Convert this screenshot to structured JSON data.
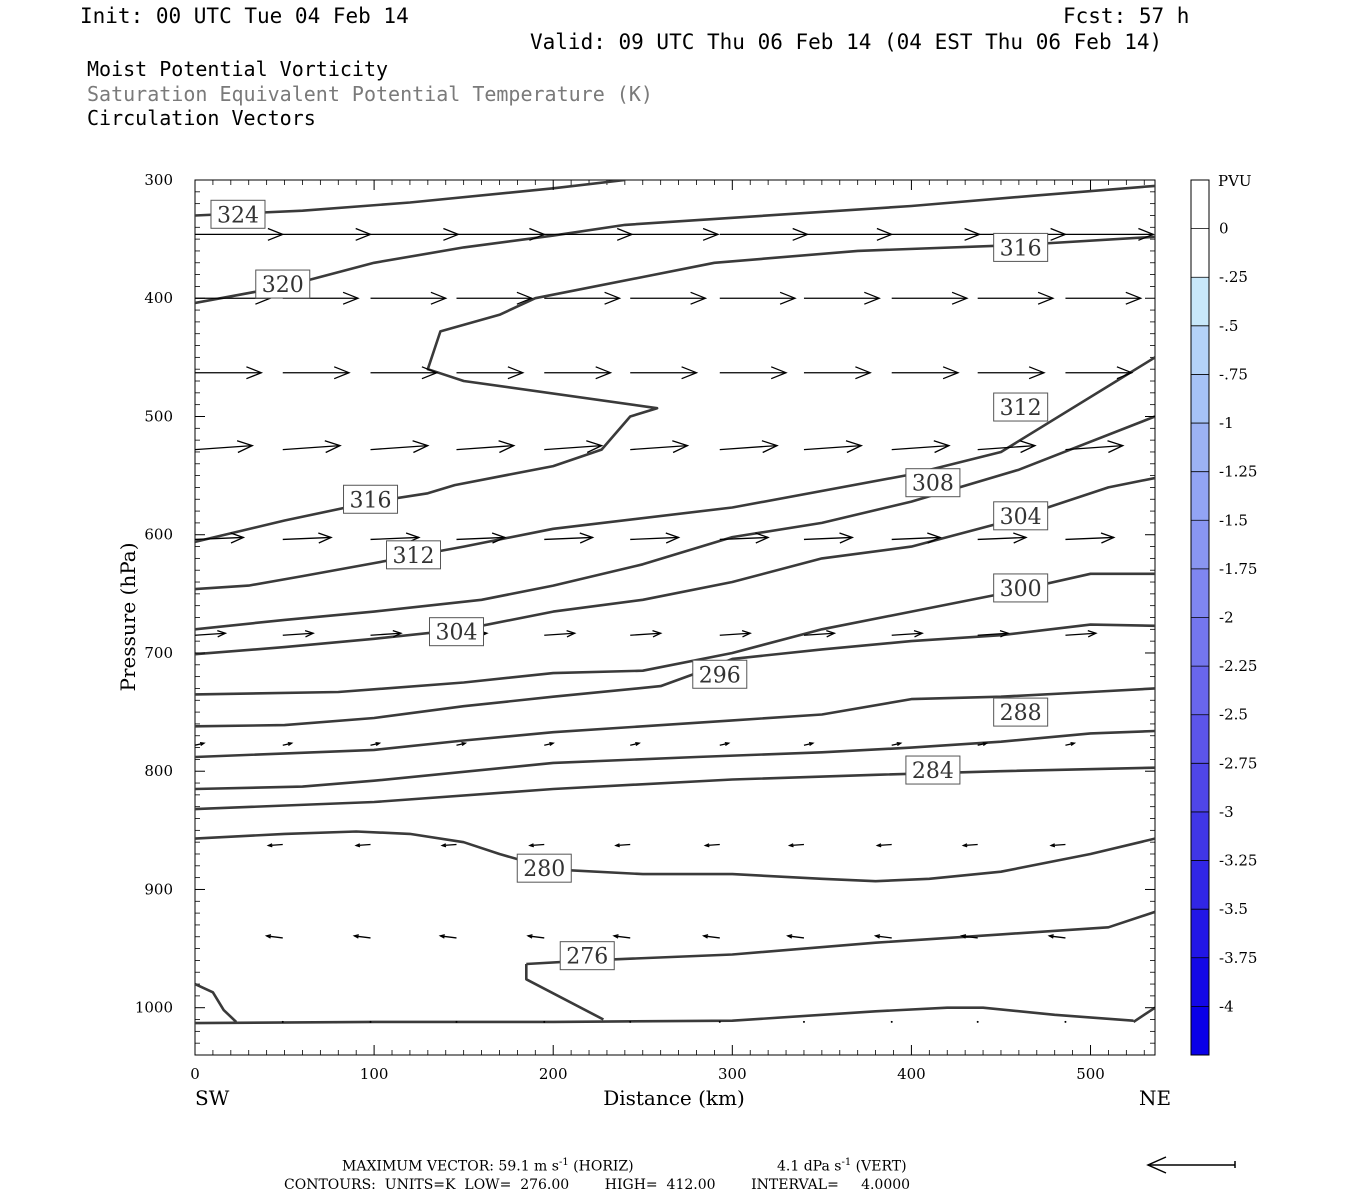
{
  "header": {
    "init": "Init: 00 UTC Tue 04 Feb 14",
    "fcst": "Fcst:   57 h",
    "valid": "Valid: 09 UTC Thu 06 Feb 14 (04 EST Thu 06 Feb 14)",
    "line1": "Moist Potential Vorticity",
    "line2": "Saturation Equivalent Potential Temperature (K)",
    "line3": "Circulation Vectors"
  },
  "footer": {
    "max_vector_prefix": "MAXIMUM VECTOR:  59.1 m s",
    "horiz_suffix": " (HORIZ)",
    "vert_prefix": "4.1 dPa s",
    "vert_suffix": " (VERT)",
    "exponent": "-1",
    "contours": "CONTOURS:  UNITS=K  LOW=  276.00        HIGH=  412.00        INTERVAL=     4.0000"
  },
  "colors": {
    "contour": "#3a3a3a",
    "vector": "#000000",
    "label_box_border": "#555555",
    "colorbar_edges": [
      "#ffffff",
      "#ffffff",
      "#c8e8fa",
      "#b4d2f8",
      "#a6c2f6",
      "#9cb2f4",
      "#92a4f4",
      "#8996f2",
      "#7f86f0",
      "#7476ee",
      "#6966ec",
      "#5c55ea",
      "#4f46e8",
      "#4036e6",
      "#3126e6",
      "#2216e6",
      "#1408e6",
      "#0a00e8"
    ]
  },
  "chart_data": {
    "type": "cross-section contour",
    "xlabel": "Distance (km)",
    "ylabel": "Pressure (hPa)",
    "x_range": [
      0,
      536
    ],
    "y_range": [
      1040,
      300
    ],
    "y_scale": "linear (pressure, inverted)",
    "x_ticks": [
      0,
      100,
      200,
      300,
      400,
      500
    ],
    "y_ticks": [
      300,
      400,
      500,
      600,
      700,
      800,
      900,
      1000
    ],
    "x_end_labels": {
      "left": "SW",
      "right": "NE"
    },
    "colorbar": {
      "title": "PVU",
      "levels": [
        "0",
        "-.25",
        "-.5",
        "-.75",
        "-1",
        "-1.25",
        "-1.5",
        "-1.75",
        "-2",
        "-2.25",
        "-2.5",
        "-2.75",
        "-3",
        "-3.25",
        "-3.5",
        "-3.75",
        "-4"
      ]
    },
    "contours": [
      {
        "label": "324",
        "points": [
          [
            0,
            330
          ],
          [
            60,
            326
          ],
          [
            120,
            319
          ],
          [
            200,
            307
          ],
          [
            240,
            300
          ]
        ]
      },
      {
        "label": "320",
        "points": [
          [
            0,
            404
          ],
          [
            50,
            390
          ],
          [
            100,
            370
          ],
          [
            150,
            357
          ],
          [
            200,
            347
          ],
          [
            240,
            338
          ],
          [
            300,
            332
          ],
          [
            400,
            322
          ],
          [
            470,
            313
          ],
          [
            536,
            305
          ]
        ]
      },
      {
        "label": "316",
        "points": [
          [
            0,
            606
          ],
          [
            50,
            588
          ],
          [
            100,
            572
          ],
          [
            130,
            565
          ],
          [
            145,
            558
          ],
          [
            200,
            542
          ],
          [
            227,
            528
          ],
          [
            243,
            500
          ],
          [
            258,
            493
          ],
          [
            150,
            470
          ],
          [
            130,
            460
          ],
          [
            137,
            428
          ],
          [
            170,
            414
          ],
          [
            190,
            400
          ],
          [
            250,
            382
          ],
          [
            290,
            370
          ],
          [
            370,
            360
          ],
          [
            460,
            355
          ],
          [
            536,
            348
          ]
        ]
      },
      {
        "label": "312",
        "points": [
          [
            0,
            646
          ],
          [
            30,
            643
          ],
          [
            60,
            635
          ],
          [
            100,
            624
          ],
          [
            150,
            610
          ],
          [
            200,
            595
          ],
          [
            300,
            577
          ],
          [
            400,
            549
          ],
          [
            450,
            530
          ],
          [
            536,
            450
          ]
        ]
      },
      {
        "label": "308",
        "points": [
          [
            0,
            680
          ],
          [
            50,
            672
          ],
          [
            100,
            665
          ],
          [
            160,
            655
          ],
          [
            200,
            643
          ],
          [
            250,
            625
          ],
          [
            300,
            602
          ],
          [
            350,
            590
          ],
          [
            400,
            572
          ],
          [
            460,
            545
          ],
          [
            536,
            500
          ]
        ]
      },
      {
        "label": "304",
        "points": [
          [
            0,
            701
          ],
          [
            50,
            695
          ],
          [
            100,
            688
          ],
          [
            150,
            680
          ],
          [
            200,
            665
          ],
          [
            250,
            655
          ],
          [
            300,
            640
          ],
          [
            350,
            620
          ],
          [
            400,
            610
          ],
          [
            450,
            590
          ],
          [
            510,
            560
          ],
          [
            536,
            552
          ]
        ]
      },
      {
        "label": "300",
        "points": [
          [
            0,
            735
          ],
          [
            80,
            733
          ],
          [
            150,
            725
          ],
          [
            200,
            717
          ],
          [
            250,
            715
          ],
          [
            300,
            700
          ],
          [
            350,
            680
          ],
          [
            400,
            665
          ],
          [
            450,
            650
          ],
          [
            500,
            633
          ],
          [
            536,
            633
          ]
        ]
      },
      {
        "label": "296",
        "points": [
          [
            0,
            762
          ],
          [
            50,
            761
          ],
          [
            100,
            755
          ],
          [
            150,
            745
          ],
          [
            200,
            737
          ],
          [
            260,
            728
          ],
          [
            280,
            717
          ],
          [
            300,
            705
          ],
          [
            350,
            697
          ],
          [
            400,
            690
          ],
          [
            450,
            685
          ],
          [
            500,
            676
          ],
          [
            536,
            677
          ]
        ]
      },
      {
        "label": "288",
        "points": [
          [
            0,
            788
          ],
          [
            100,
            782
          ],
          [
            150,
            774
          ],
          [
            200,
            767
          ],
          [
            250,
            762
          ],
          [
            300,
            757
          ],
          [
            350,
            752
          ],
          [
            400,
            739
          ],
          [
            450,
            737
          ],
          [
            500,
            733
          ],
          [
            536,
            730
          ]
        ]
      },
      {
        "label": "284",
        "points": [
          [
            0,
            815
          ],
          [
            60,
            813
          ],
          [
            100,
            808
          ],
          [
            200,
            793
          ],
          [
            280,
            788
          ],
          [
            350,
            784
          ],
          [
            400,
            780
          ],
          [
            450,
            775
          ],
          [
            500,
            768
          ],
          [
            536,
            766
          ]
        ]
      },
      {
        "label": "ctr-830",
        "points": [
          [
            0,
            832
          ],
          [
            100,
            826
          ],
          [
            200,
            815
          ],
          [
            300,
            807
          ],
          [
            380,
            803
          ],
          [
            450,
            800
          ],
          [
            536,
            797
          ]
        ]
      },
      {
        "label": "280",
        "points": [
          [
            0,
            857
          ],
          [
            50,
            853
          ],
          [
            90,
            851
          ],
          [
            120,
            853
          ],
          [
            150,
            860
          ],
          [
            170,
            870
          ],
          [
            200,
            883
          ],
          [
            250,
            887
          ],
          [
            300,
            887
          ],
          [
            350,
            891
          ],
          [
            380,
            893
          ],
          [
            410,
            891
          ],
          [
            450,
            885
          ],
          [
            500,
            870
          ],
          [
            536,
            857
          ]
        ]
      },
      {
        "label": "276",
        "points": [
          [
            185,
            963
          ],
          [
            220,
            960
          ],
          [
            300,
            955
          ],
          [
            380,
            945
          ],
          [
            450,
            938
          ],
          [
            510,
            932
          ],
          [
            536,
            919
          ]
        ]
      },
      {
        "label": "ctr-276b",
        "points": [
          [
            185,
            963
          ],
          [
            185,
            976
          ],
          [
            228,
            1010
          ]
        ]
      },
      {
        "label": "ctr-1013",
        "points": [
          [
            0,
            1013
          ],
          [
            100,
            1012
          ],
          [
            200,
            1012
          ],
          [
            300,
            1011
          ],
          [
            380,
            1003
          ],
          [
            420,
            1000
          ],
          [
            440,
            1000
          ],
          [
            480,
            1006
          ],
          [
            524,
            1011
          ]
        ]
      },
      {
        "label": "ctr-sw-corner",
        "points": [
          [
            0,
            980
          ],
          [
            10,
            987
          ],
          [
            16,
            1002
          ],
          [
            23,
            1012
          ]
        ]
      },
      {
        "label": "ctr-ne-corner",
        "points": [
          [
            524,
            1012
          ],
          [
            532,
            1004
          ],
          [
            536,
            1000
          ]
        ]
      }
    ],
    "contour_labels": [
      {
        "text": "324",
        "x": 24,
        "p": 329
      },
      {
        "text": "320",
        "x": 49,
        "p": 388
      },
      {
        "text": "316",
        "x": 461,
        "p": 357
      },
      {
        "text": "312",
        "x": 461,
        "p": 492
      },
      {
        "text": "316",
        "x": 98,
        "p": 570
      },
      {
        "text": "308",
        "x": 412,
        "p": 556
      },
      {
        "text": "304",
        "x": 461,
        "p": 584
      },
      {
        "text": "312",
        "x": 122,
        "p": 617
      },
      {
        "text": "300",
        "x": 461,
        "p": 645
      },
      {
        "text": "304",
        "x": 146,
        "p": 682
      },
      {
        "text": "296",
        "x": 293,
        "p": 718
      },
      {
        "text": "288",
        "x": 461,
        "p": 750
      },
      {
        "text": "284",
        "x": 412,
        "p": 799
      },
      {
        "text": "280",
        "x": 195,
        "p": 882
      },
      {
        "text": "276",
        "x": 219,
        "p": 956
      }
    ],
    "vectors": [
      {
        "p": 346,
        "x0": [
          0,
          49,
          98,
          146,
          195,
          243,
          293,
          340,
          389,
          437,
          486
        ],
        "u": 49,
        "w": 0
      },
      {
        "p": 400,
        "x0": [
          0,
          49,
          98,
          146,
          195,
          243,
          293,
          340,
          389,
          437,
          486
        ],
        "u": 42,
        "w": 0
      },
      {
        "p": 463,
        "x0": [
          0,
          49,
          98,
          146,
          195,
          243,
          293,
          340,
          389,
          437,
          486
        ],
        "u": 37,
        "w": 0
      },
      {
        "p": 528,
        "x0": [
          0,
          49,
          98,
          146,
          195,
          243,
          293,
          340,
          389,
          437,
          486
        ],
        "u": 32,
        "w": -4
      },
      {
        "p": 604,
        "x0": [
          0,
          49,
          98,
          146,
          195,
          243,
          293,
          340,
          389,
          437,
          486
        ],
        "u": 27,
        "w": -2
      },
      {
        "p": 685,
        "x0": [
          0,
          49,
          98,
          146,
          195,
          243,
          293,
          340,
          389,
          437,
          486
        ],
        "u": 17,
        "w": -2
      },
      {
        "p": 778,
        "x0": [
          0,
          49,
          98,
          146,
          195,
          243,
          293,
          340,
          389,
          437,
          486
        ],
        "u": 5,
        "w": -2
      },
      {
        "p": 862,
        "x0": [
          49,
          98,
          146,
          195,
          243,
          293,
          340,
          389,
          437,
          486
        ],
        "u": -8,
        "w": 1
      },
      {
        "p": 941,
        "x0": [
          49,
          98,
          146,
          195,
          243,
          293,
          340,
          389,
          437,
          486
        ],
        "u": -9,
        "w": -2
      },
      {
        "p": 1012,
        "x0": [
          49,
          98,
          146,
          195,
          243,
          293,
          340,
          389,
          437,
          486
        ],
        "u": 0.5,
        "w": 0
      }
    ]
  }
}
